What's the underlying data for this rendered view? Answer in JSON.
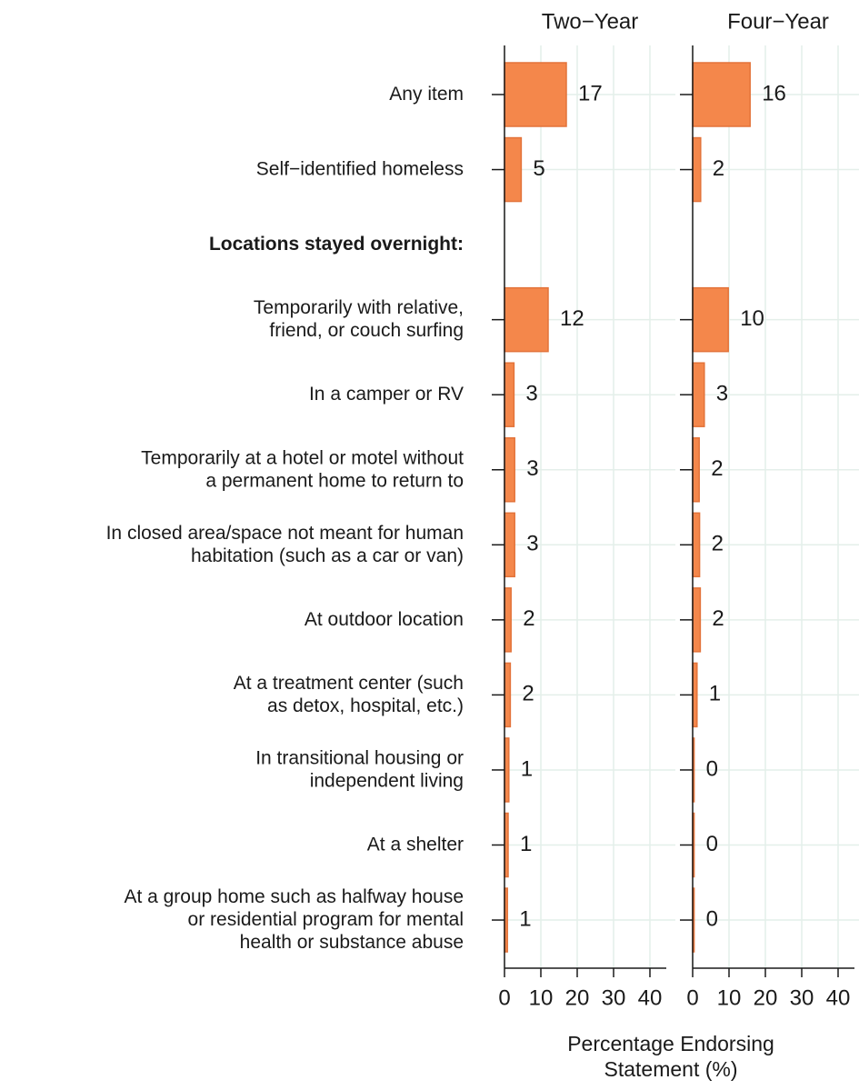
{
  "chart_data": {
    "type": "bar",
    "orientation": "horizontal",
    "categories": [
      "Any item",
      "Self−identified homeless",
      "Locations stayed overnight:",
      "Temporarily with relative,\nfriend, or couch surfing",
      "In a camper or RV",
      "Temporarily at a hotel or motel without\na permanent home to return to",
      "In closed area/space not meant for human\nhabitation (such as a car or van)",
      "At outdoor location",
      "At a treatment center (such\nas detox, hospital, etc.)",
      "In transitional housing or\nindependent living",
      "At a shelter",
      "At a group home such as halfway house\nor residential program for mental\nhealth or substance abuse"
    ],
    "series": [
      {
        "name": "Two−Year",
        "color": "#f4874b",
        "values": [
          17,
          4.6,
          null,
          12,
          2.6,
          2.8,
          2.8,
          1.8,
          1.6,
          1.2,
          1,
          0.8
        ],
        "value_labels": [
          "17",
          "5",
          null,
          "12",
          "3",
          "3",
          "3",
          "2",
          "2",
          "1",
          "1",
          "1"
        ]
      },
      {
        "name": "Four−Year",
        "color": "#f4874b",
        "values": [
          15.8,
          2.2,
          null,
          9.8,
          3.2,
          1.8,
          1.9,
          2.1,
          1.2,
          0.4,
          0.4,
          0.4
        ],
        "value_labels": [
          "16",
          "2",
          null,
          "10",
          "3",
          "2",
          "2",
          "2",
          "1",
          "0",
          "0",
          "0"
        ]
      }
    ],
    "xlabel": "Percentage Endorsing\nStatement (%)",
    "xlim": [
      0,
      44.5
    ],
    "xticks": [
      0,
      10,
      20,
      30,
      40
    ],
    "grid": true
  }
}
